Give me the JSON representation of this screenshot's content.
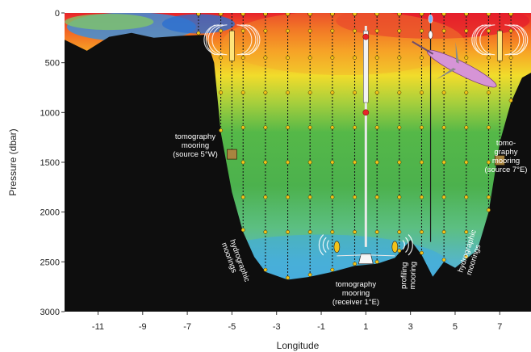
{
  "chart_data": {
    "type": "section",
    "xlabel": "Longitude",
    "ylabel": "Pressure (dbar)",
    "xlim": [
      -12.5,
      8.4
    ],
    "ylim": [
      3000,
      0
    ],
    "x_ticks": [
      -11,
      -9,
      -7,
      -5,
      -3,
      -1,
      1,
      3,
      5,
      7
    ],
    "y_ticks": [
      0,
      500,
      1000,
      1500,
      2000,
      2500,
      3000
    ],
    "bathymetry": [
      [
        -12.5,
        270
      ],
      [
        -11.5,
        380
      ],
      [
        -10.5,
        240
      ],
      [
        -9.5,
        200
      ],
      [
        -8.5,
        250
      ],
      [
        -7.3,
        230
      ],
      [
        -6.2,
        220
      ],
      [
        -5.8,
        500
      ],
      [
        -5.5,
        1200
      ],
      [
        -5.0,
        1800
      ],
      [
        -4.5,
        2200
      ],
      [
        -4.0,
        2450
      ],
      [
        -3.5,
        2600
      ],
      [
        -2.5,
        2680
      ],
      [
        -1.5,
        2650
      ],
      [
        -0.5,
        2600
      ],
      [
        0.5,
        2540
      ],
      [
        1.5,
        2520
      ],
      [
        2.3,
        2460
      ],
      [
        3.0,
        2280
      ],
      [
        3.5,
        2430
      ],
      [
        4.0,
        2650
      ],
      [
        4.5,
        2500
      ],
      [
        5.0,
        2560
      ],
      [
        6.0,
        2380
      ],
      [
        6.5,
        2000
      ],
      [
        7.0,
        1300
      ],
      [
        7.5,
        900
      ],
      [
        8.0,
        650
      ],
      [
        8.4,
        600
      ]
    ],
    "hydrographic_moorings_x": [
      -6.5,
      -5.5,
      -4.5,
      -3.5,
      -2.5,
      -1.5,
      -0.5,
      0.5,
      1.5,
      2.5,
      3.5,
      4.5,
      5.5,
      6.5,
      7.5
    ],
    "profiling_mooring_x": 3.9,
    "receiver_mooring_x": 1,
    "sources": [
      {
        "x": -5,
        "depth": 1420
      },
      {
        "x": 7,
        "depth": 1480
      }
    ],
    "annotations": {
      "tomo_source_west": [
        "tomography",
        "mooring",
        "(source 5°W)"
      ],
      "tomo_source_east": [
        "tomo-",
        "graphy",
        "mooring",
        "(source 7°E)"
      ],
      "tomo_receiver": [
        "tomography",
        "mooring",
        "(receiver 1°E)"
      ],
      "hydro_left": [
        "hydrographic",
        "moorings"
      ],
      "hydro_right": [
        "hydrographic",
        "moorings"
      ],
      "profiling": [
        "profiling",
        "mooring"
      ]
    },
    "colors": {
      "deep_black": "#0e0e0e",
      "warm_red": "#e8232a",
      "orange": "#f58a23",
      "yellow": "#f3d928",
      "green": "#55b848",
      "light_blue": "#4fb1e6",
      "mooring_line": "#ffe57a",
      "source_box": "#a8843f",
      "glider": "#d694d6"
    }
  }
}
